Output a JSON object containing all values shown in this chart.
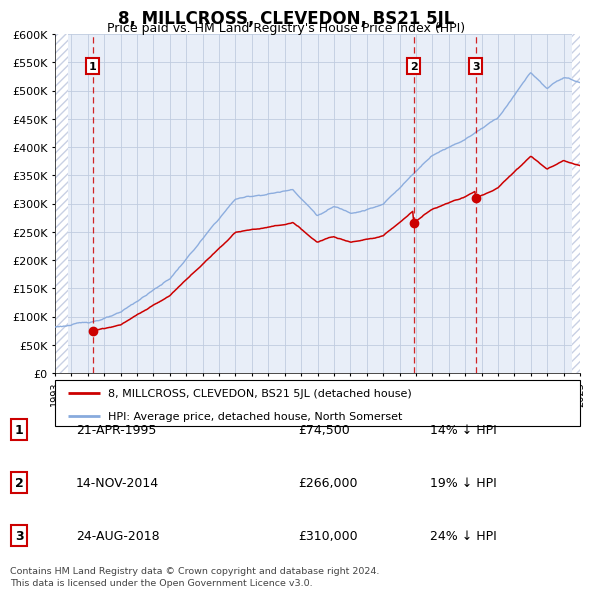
{
  "title": "8, MILLCROSS, CLEVEDON, BS21 5JL",
  "subtitle": "Price paid vs. HM Land Registry's House Price Index (HPI)",
  "property_label": "8, MILLCROSS, CLEVEDON, BS21 5JL (detached house)",
  "hpi_label": "HPI: Average price, detached house, North Somerset",
  "sales": [
    {
      "num": 1,
      "date": "21-APR-1995",
      "year": 1995.3,
      "price": 74500,
      "pct": "14% ↓ HPI"
    },
    {
      "num": 2,
      "date": "14-NOV-2014",
      "year": 2014.87,
      "price": 266000,
      "pct": "19% ↓ HPI"
    },
    {
      "num": 3,
      "date": "24-AUG-2018",
      "year": 2018.65,
      "price": 310000,
      "pct": "24% ↓ HPI"
    }
  ],
  "ylabel_ticks": [
    "£0",
    "£50K",
    "£100K",
    "£150K",
    "£200K",
    "£250K",
    "£300K",
    "£350K",
    "£400K",
    "£450K",
    "£500K",
    "£550K",
    "£600K"
  ],
  "ytick_values": [
    0,
    50000,
    100000,
    150000,
    200000,
    250000,
    300000,
    350000,
    400000,
    450000,
    500000,
    550000,
    600000
  ],
  "xmin": 1993,
  "xmax": 2025,
  "ymin": 0,
  "ymax": 600000,
  "footnote": "Contains HM Land Registry data © Crown copyright and database right 2024.\nThis data is licensed under the Open Government Licence v3.0.",
  "bg_color": "#e8eef8",
  "hatch_color": "#c8d0e4",
  "grid_color": "#c0cce0",
  "sale_line_color": "#cc0000",
  "hpi_line_color": "#88aadd",
  "sale_dot_color": "#cc0000",
  "label_box_color": "#cc0000",
  "title_fontsize": 12,
  "subtitle_fontsize": 9
}
